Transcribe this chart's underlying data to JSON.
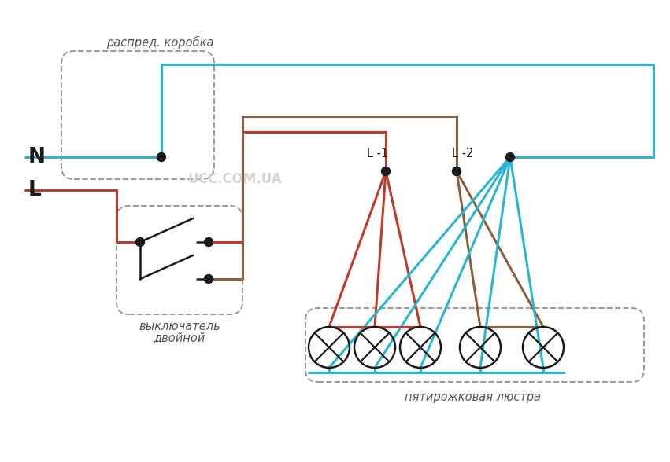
{
  "bg_color": "#ffffff",
  "cyan": "#29b6d0",
  "red": "#c0392b",
  "brown": "#8B5E3C",
  "black": "#1a1a1a",
  "gray_dash": "#999999",
  "text_dark": "#444444",
  "label_N": "N",
  "label_L": "L",
  "label_L1": "L -1",
  "label_L2": "L -2",
  "label_distbox": "распред. коробка",
  "label_switch1": "выключатель",
  "label_switch2": "двойной",
  "label_chandelier": "пятирожковая люстра",
  "label_watermark": "UCC.COM.UA",
  "fig_w": 8.51,
  "fig_h": 5.88,
  "dpi": 100
}
